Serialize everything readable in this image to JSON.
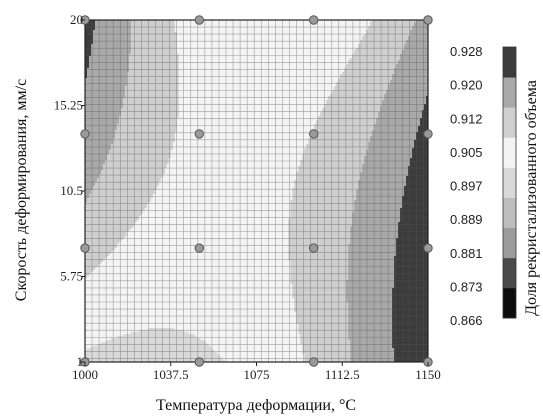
{
  "chart_data": {
    "type": "heatmap",
    "subtype": "filled-contour",
    "xlabel": "Температура деформации, °C",
    "ylabel": "Скорость деформирования, мм/с",
    "colorbar_label": "Доля рекристализованного объема",
    "xlim": [
      1000,
      1150
    ],
    "ylim": [
      1,
      20
    ],
    "x_ticks": [
      "1000",
      "1037.5",
      "1075",
      "1112.5",
      "1150"
    ],
    "y_ticks": [
      "1",
      "5.75",
      "10.5",
      "15.25",
      "20"
    ],
    "x_tick_values": [
      1000,
      1037.5,
      1075,
      1112.5,
      1150
    ],
    "y_tick_values": [
      1,
      5.75,
      10.5,
      15.25,
      20
    ],
    "colorbar_ticks": [
      "0.928",
      "0.920",
      "0.912",
      "0.905",
      "0.897",
      "0.889",
      "0.881",
      "0.873",
      "0.866"
    ],
    "colorbar_levels": [
      0.866,
      0.873,
      0.881,
      0.889,
      0.897,
      0.905,
      0.912,
      0.92,
      0.928
    ],
    "level_colors": [
      "#0d0d0d",
      "#4a4a4a",
      "#9b9b9b",
      "#bdbdbd",
      "#d9d9d9",
      "#f4f4f4",
      "#cfcfcf",
      "#a9a9a9",
      "#3c3c3c"
    ],
    "grid": true,
    "legend": "colorbar-right",
    "design_points": [
      [
        1000,
        1
      ],
      [
        1000,
        7.33
      ],
      [
        1000,
        13.67
      ],
      [
        1000,
        20
      ],
      [
        1050,
        1
      ],
      [
        1050,
        7.33
      ],
      [
        1050,
        13.67
      ],
      [
        1050,
        20
      ],
      [
        1100,
        1
      ],
      [
        1100,
        7.33
      ],
      [
        1100,
        13.67
      ],
      [
        1100,
        20
      ],
      [
        1150,
        1
      ],
      [
        1150,
        7.33
      ],
      [
        1150,
        13.67
      ],
      [
        1150,
        20
      ]
    ],
    "model": {
      "form": "quadratic response surface in normalized (T, v)",
      "fit": "visual estimate"
    }
  }
}
